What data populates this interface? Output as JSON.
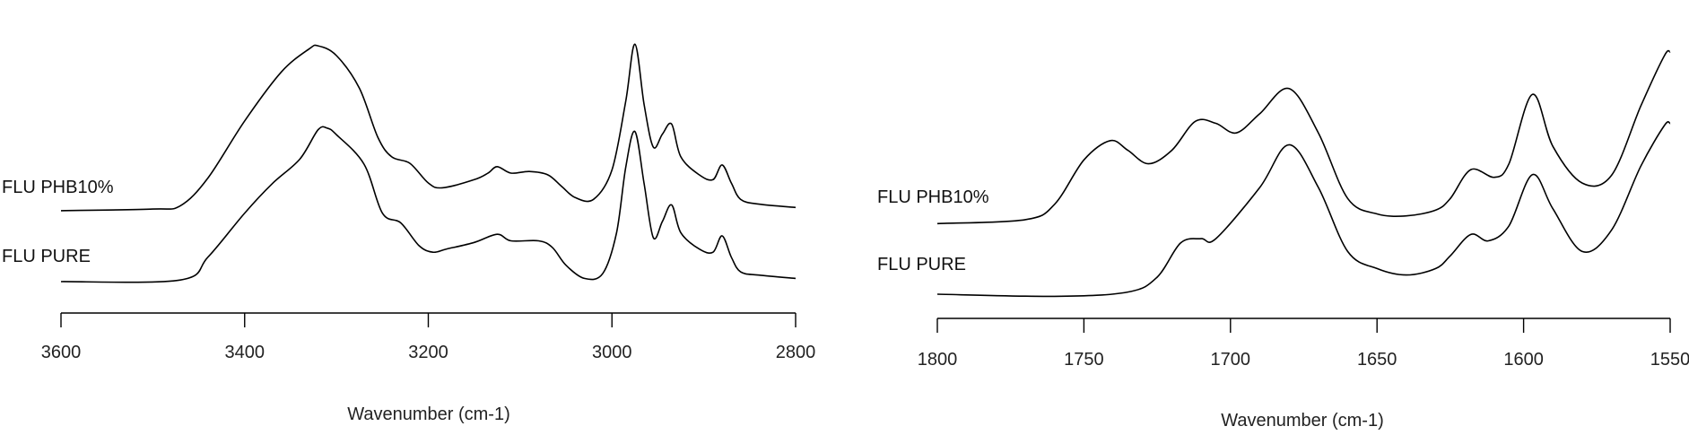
{
  "chart_data": [
    {
      "type": "line",
      "xlabel": "Wavenumber (cm-1)",
      "ylabel": "",
      "xlim": [
        3600,
        2800
      ],
      "x_reversed": true,
      "ticks": [
        3600,
        3400,
        3200,
        3000,
        2800
      ],
      "y_axis_shown": false,
      "grid": false,
      "series": [
        {
          "name": "FLU PHB10%",
          "points": [
            [
              3600,
              0.05
            ],
            [
              3500,
              0.06
            ],
            [
              3470,
              0.08
            ],
            [
              3440,
              0.25
            ],
            [
              3400,
              0.6
            ],
            [
              3360,
              0.9
            ],
            [
              3330,
              1.04
            ],
            [
              3320,
              1.06
            ],
            [
              3300,
              1.0
            ],
            [
              3275,
              0.8
            ],
            [
              3255,
              0.5
            ],
            [
              3240,
              0.38
            ],
            [
              3220,
              0.34
            ],
            [
              3200,
              0.22
            ],
            [
              3185,
              0.19
            ],
            [
              3150,
              0.24
            ],
            [
              3135,
              0.28
            ],
            [
              3125,
              0.32
            ],
            [
              3110,
              0.28
            ],
            [
              3090,
              0.29
            ],
            [
              3070,
              0.27
            ],
            [
              3055,
              0.2
            ],
            [
              3040,
              0.13
            ],
            [
              3020,
              0.12
            ],
            [
              3000,
              0.3
            ],
            [
              2985,
              0.72
            ],
            [
              2975,
              1.07
            ],
            [
              2965,
              0.7
            ],
            [
              2955,
              0.44
            ],
            [
              2945,
              0.52
            ],
            [
              2935,
              0.58
            ],
            [
              2925,
              0.38
            ],
            [
              2905,
              0.27
            ],
            [
              2890,
              0.24
            ],
            [
              2880,
              0.33
            ],
            [
              2870,
              0.22
            ],
            [
              2860,
              0.12
            ],
            [
              2840,
              0.09
            ],
            [
              2800,
              0.07
            ]
          ]
        },
        {
          "name": "FLU PURE",
          "points": [
            [
              3600,
              0.0
            ],
            [
              3470,
              0.01
            ],
            [
              3440,
              0.15
            ],
            [
              3400,
              0.42
            ],
            [
              3370,
              0.6
            ],
            [
              3340,
              0.75
            ],
            [
              3320,
              0.93
            ],
            [
              3310,
              0.94
            ],
            [
              3300,
              0.9
            ],
            [
              3270,
              0.72
            ],
            [
              3250,
              0.42
            ],
            [
              3230,
              0.36
            ],
            [
              3210,
              0.22
            ],
            [
              3195,
              0.18
            ],
            [
              3180,
              0.2
            ],
            [
              3150,
              0.24
            ],
            [
              3125,
              0.29
            ],
            [
              3110,
              0.25
            ],
            [
              3080,
              0.25
            ],
            [
              3065,
              0.21
            ],
            [
              3050,
              0.1
            ],
            [
              3030,
              0.02
            ],
            [
              3010,
              0.05
            ],
            [
              2995,
              0.3
            ],
            [
              2985,
              0.7
            ],
            [
              2975,
              0.92
            ],
            [
              2965,
              0.6
            ],
            [
              2955,
              0.27
            ],
            [
              2945,
              0.37
            ],
            [
              2935,
              0.47
            ],
            [
              2925,
              0.3
            ],
            [
              2905,
              0.2
            ],
            [
              2890,
              0.18
            ],
            [
              2880,
              0.28
            ],
            [
              2870,
              0.15
            ],
            [
              2860,
              0.06
            ],
            [
              2840,
              0.04
            ],
            [
              2800,
              0.02
            ]
          ]
        }
      ]
    },
    {
      "type": "line",
      "xlabel": "Wavenumber (cm-1)",
      "ylabel": "",
      "xlim": [
        1800,
        1550
      ],
      "x_reversed": true,
      "ticks": [
        1800,
        1750,
        1700,
        1650,
        1600,
        1550
      ],
      "y_axis_shown": false,
      "grid": false,
      "series": [
        {
          "name": "FLU PHB10%",
          "points": [
            [
              1800,
              0.05
            ],
            [
              1770,
              0.07
            ],
            [
              1760,
              0.15
            ],
            [
              1750,
              0.38
            ],
            [
              1741,
              0.48
            ],
            [
              1735,
              0.43
            ],
            [
              1728,
              0.36
            ],
            [
              1720,
              0.43
            ],
            [
              1712,
              0.58
            ],
            [
              1705,
              0.57
            ],
            [
              1698,
              0.52
            ],
            [
              1690,
              0.62
            ],
            [
              1680,
              0.75
            ],
            [
              1670,
              0.52
            ],
            [
              1660,
              0.18
            ],
            [
              1650,
              0.1
            ],
            [
              1640,
              0.09
            ],
            [
              1630,
              0.12
            ],
            [
              1625,
              0.18
            ],
            [
              1618,
              0.33
            ],
            [
              1610,
              0.29
            ],
            [
              1605,
              0.36
            ],
            [
              1597,
              0.72
            ],
            [
              1590,
              0.45
            ],
            [
              1580,
              0.26
            ],
            [
              1570,
              0.3
            ],
            [
              1560,
              0.66
            ],
            [
              1552,
              0.92
            ],
            [
              1550,
              0.94
            ]
          ]
        },
        {
          "name": "FLU PURE",
          "points": [
            [
              1800,
              0.0
            ],
            [
              1760,
              -0.01
            ],
            [
              1735,
              0.01
            ],
            [
              1725,
              0.08
            ],
            [
              1717,
              0.24
            ],
            [
              1710,
              0.26
            ],
            [
              1705,
              0.26
            ],
            [
              1690,
              0.5
            ],
            [
              1680,
              0.7
            ],
            [
              1670,
              0.5
            ],
            [
              1660,
              0.2
            ],
            [
              1650,
              0.12
            ],
            [
              1640,
              0.09
            ],
            [
              1630,
              0.12
            ],
            [
              1625,
              0.18
            ],
            [
              1618,
              0.28
            ],
            [
              1612,
              0.25
            ],
            [
              1605,
              0.32
            ],
            [
              1597,
              0.56
            ],
            [
              1590,
              0.4
            ],
            [
              1580,
              0.2
            ],
            [
              1570,
              0.3
            ],
            [
              1560,
              0.6
            ],
            [
              1552,
              0.79
            ],
            [
              1550,
              0.8
            ]
          ]
        }
      ]
    }
  ]
}
